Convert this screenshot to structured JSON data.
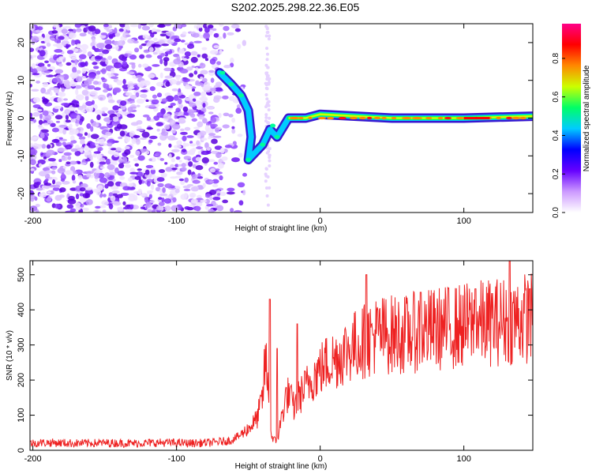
{
  "title": "S202.2025.298.22.36.E05",
  "chart_data": [
    {
      "type": "heatmap",
      "xlabel": "Height of straight line (km)",
      "ylabel": "Frequency (Hz)",
      "xlim": [
        -202,
        148
      ],
      "ylim": [
        -25,
        25
      ],
      "xticks": [
        -200,
        -100,
        0,
        100
      ],
      "yticks": [
        -20,
        -10,
        0,
        10,
        20
      ],
      "colorbar": {
        "label": "Normalized spectral amplitude",
        "range": [
          0,
          1
        ],
        "ticks": [
          "0.0",
          "0.2",
          "0.4",
          "0.6",
          "0.8"
        ],
        "colors": [
          "#ffffff",
          "#cc99ff",
          "#6600ff",
          "#0000ff",
          "#00ccff",
          "#00ff66",
          "#ccff00",
          "#ff8800",
          "#ff0000",
          "#ff0088"
        ]
      },
      "ridge": [
        {
          "x": -70,
          "f": 12
        },
        {
          "x": -62,
          "f": 9
        },
        {
          "x": -55,
          "f": 6
        },
        {
          "x": -50,
          "f": 2
        },
        {
          "x": -48,
          "f": -5
        },
        {
          "x": -50,
          "f": -11
        },
        {
          "x": -40,
          "f": -7
        },
        {
          "x": -35,
          "f": -3
        },
        {
          "x": -30,
          "f": -5
        },
        {
          "x": -22,
          "f": 0
        },
        {
          "x": -10,
          "f": 0
        },
        {
          "x": 0,
          "f": 1
        },
        {
          "x": 50,
          "f": 0
        },
        {
          "x": 100,
          "f": 0
        },
        {
          "x": 148,
          "f": 0.5
        }
      ]
    },
    {
      "type": "line",
      "xlabel": "Height of straight line (km)",
      "ylabel": "SNR (10 * v/v)",
      "xlim": [
        -202,
        148
      ],
      "ylim": [
        0,
        540
      ],
      "xticks": [
        -200,
        -100,
        0,
        100
      ],
      "yticks": [
        0,
        100,
        200,
        300,
        400,
        500
      ],
      "color": "#ee2222",
      "series": [
        {
          "name": "SNR",
          "x": [
            -202,
            -190,
            -170,
            -150,
            -130,
            -110,
            -90,
            -75,
            -62,
            -55,
            -48,
            -44,
            -40,
            -38,
            -36,
            -34,
            -30,
            -28,
            -24,
            -22,
            -20,
            -18,
            -15,
            -10,
            -5,
            0,
            5,
            10,
            20,
            30,
            40,
            50,
            60,
            70,
            80,
            90,
            100,
            110,
            120,
            130,
            140,
            148
          ],
          "y": [
            20,
            22,
            20,
            21,
            20,
            22,
            20,
            22,
            28,
            45,
            70,
            90,
            150,
            270,
            150,
            40,
            20,
            70,
            150,
            160,
            140,
            120,
            150,
            180,
            210,
            230,
            250,
            260,
            290,
            310,
            330,
            330,
            330,
            340,
            345,
            350,
            355,
            360,
            365,
            370,
            375,
            380
          ]
        }
      ],
      "peaks": [
        {
          "x": -35,
          "y": 430
        },
        {
          "x": -30,
          "y": 290
        },
        {
          "x": -16,
          "y": 360
        },
        {
          "x": 32,
          "y": 500
        },
        {
          "x": 70,
          "y": 450
        },
        {
          "x": 108,
          "y": 460
        },
        {
          "x": 132,
          "y": 540
        },
        {
          "x": 146,
          "y": 460
        }
      ]
    }
  ]
}
